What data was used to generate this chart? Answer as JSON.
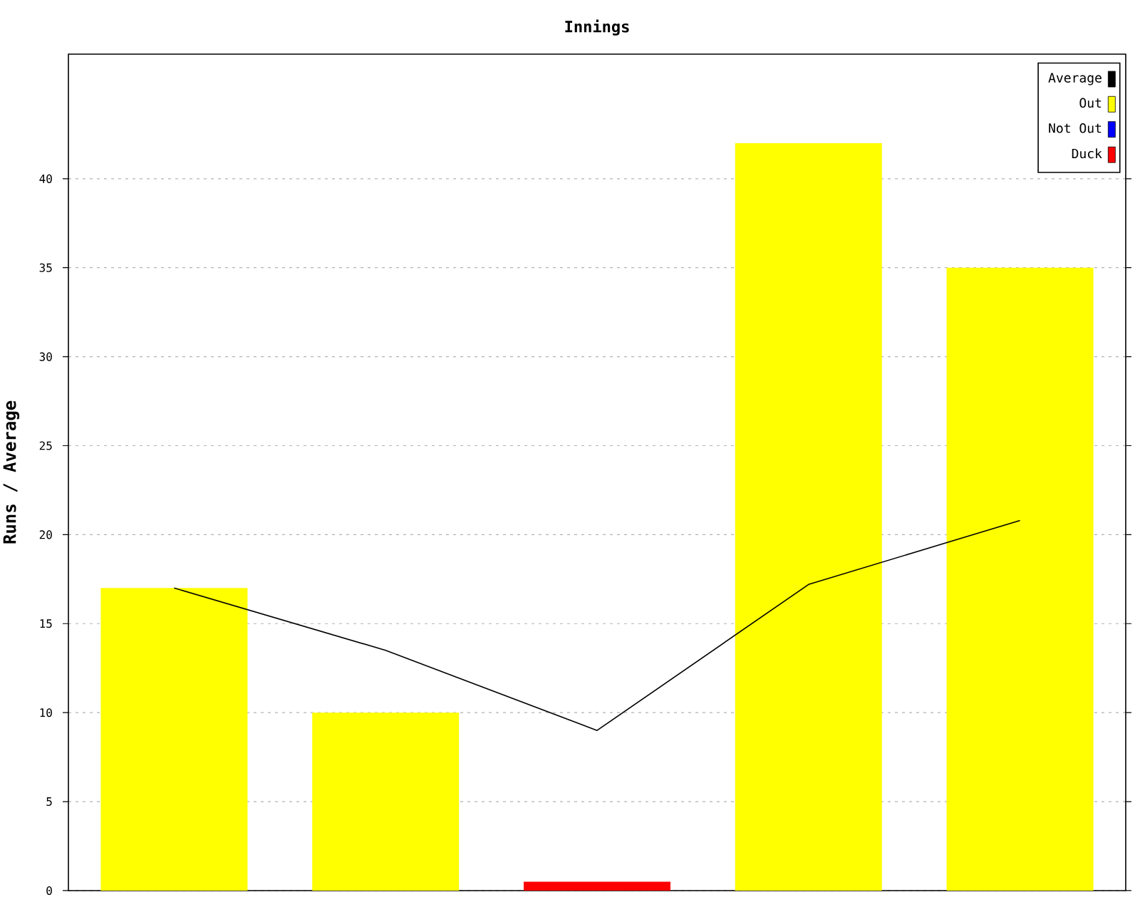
{
  "chart_data": {
    "type": "bar",
    "title": "Innings",
    "ylabel": "Runs / Average",
    "categories": [
      null,
      null,
      null,
      null,
      null
    ],
    "series": [
      {
        "name": "Average",
        "type": "line",
        "color": "#000000",
        "values": [
          17,
          13.5,
          9,
          17.2,
          20.8
        ]
      },
      {
        "name": "Out",
        "color": "#ffff00",
        "values": [
          17,
          10,
          null,
          42,
          35
        ]
      },
      {
        "name": "Not Out",
        "color": "#0000ff",
        "values": [
          null,
          null,
          null,
          null,
          null
        ]
      },
      {
        "name": "Duck",
        "color": "#ff0000",
        "values": [
          null,
          null,
          0.5,
          null,
          null
        ]
      }
    ],
    "ylim": [
      0,
      47
    ],
    "yticks": [
      0,
      5,
      10,
      15,
      20,
      25,
      30,
      35,
      40
    ],
    "grid": "y",
    "legend": "top right",
    "marker": "none",
    "line_style": "solid"
  }
}
